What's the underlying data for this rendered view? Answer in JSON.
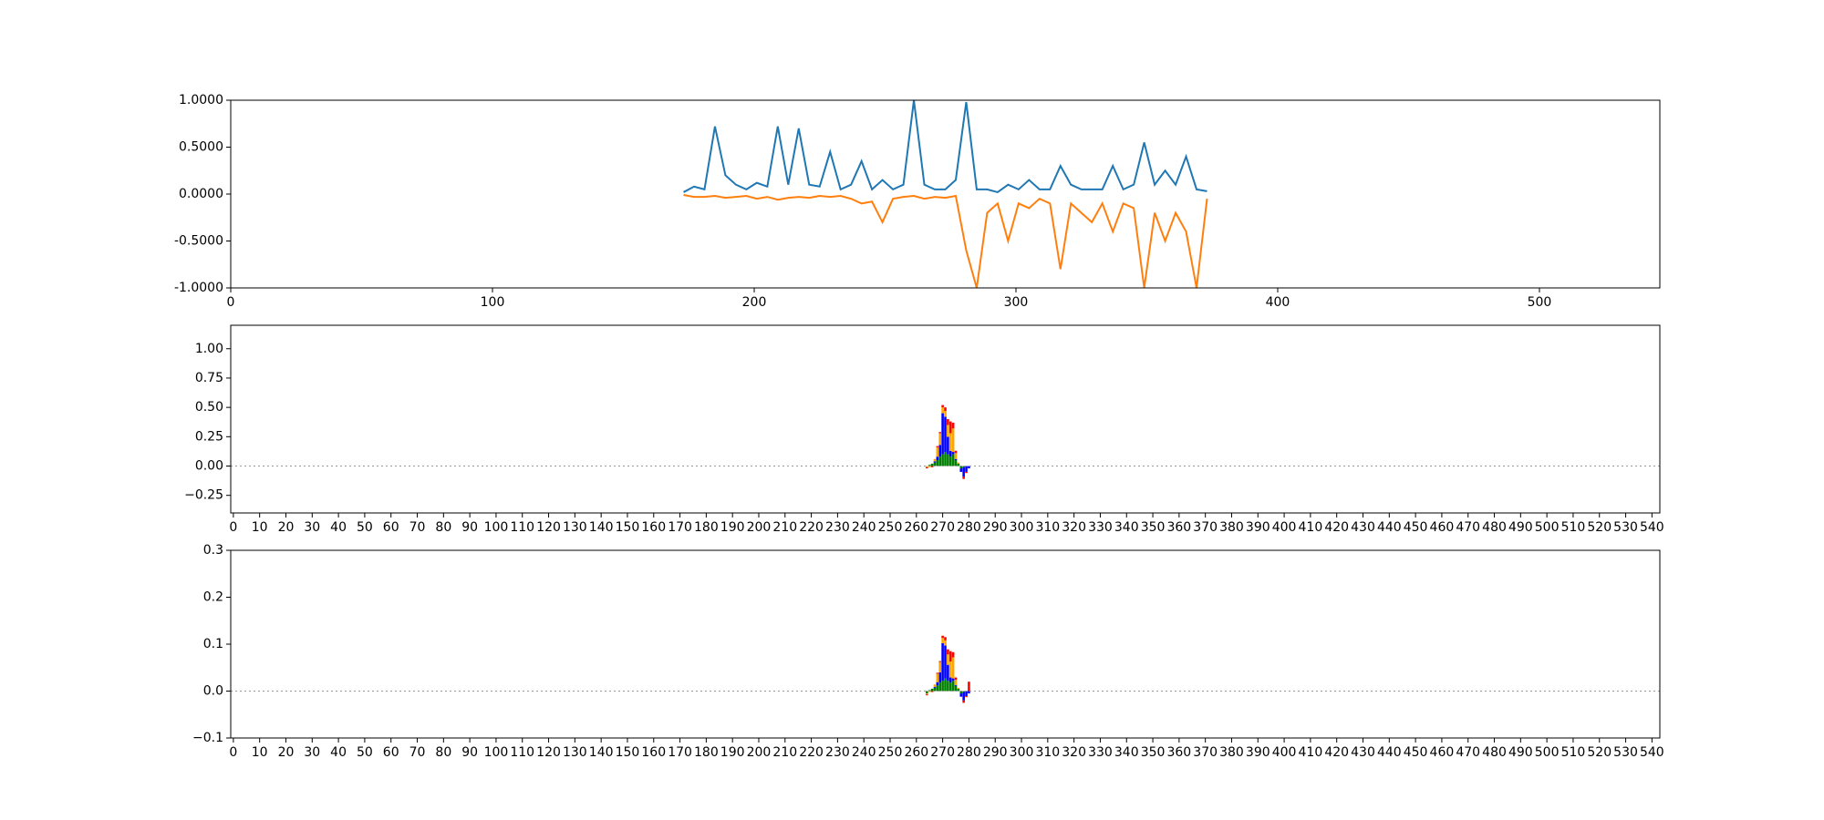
{
  "chart_data": [
    {
      "type": "line",
      "x": [
        173,
        177,
        181,
        185,
        189,
        193,
        197,
        201,
        205,
        209,
        213,
        217,
        221,
        225,
        229,
        233,
        237,
        241,
        245,
        249,
        253,
        257,
        261,
        265,
        269,
        273,
        277,
        281,
        285,
        289,
        293,
        297,
        301,
        305,
        309,
        313,
        317,
        321,
        325,
        329,
        333,
        337,
        341,
        345,
        349,
        353,
        357,
        361,
        365,
        369,
        373
      ],
      "series": [
        {
          "color": "#1f77b4",
          "values": [
            0.02,
            0.08,
            0.05,
            0.72,
            0.2,
            0.1,
            0.05,
            0.12,
            0.08,
            0.72,
            0.1,
            0.7,
            0.1,
            0.08,
            0.45,
            0.05,
            0.1,
            0.35,
            0.05,
            0.15,
            0.05,
            0.1,
            1.0,
            0.1,
            0.05,
            0.05,
            0.15,
            0.98,
            0.05,
            0.05,
            0.02,
            0.1,
            0.05,
            0.15,
            0.05,
            0.05,
            0.3,
            0.1,
            0.05,
            0.05,
            0.05,
            0.3,
            0.05,
            0.1,
            0.55,
            0.1,
            0.25,
            0.1,
            0.4,
            0.05,
            0.03
          ]
        },
        {
          "color": "#ff7f0e",
          "values": [
            -0.01,
            -0.03,
            -0.03,
            -0.02,
            -0.04,
            -0.03,
            -0.02,
            -0.05,
            -0.03,
            -0.06,
            -0.04,
            -0.03,
            -0.04,
            -0.02,
            -0.03,
            -0.02,
            -0.05,
            -0.1,
            -0.08,
            -0.3,
            -0.05,
            -0.03,
            -0.02,
            -0.05,
            -0.03,
            -0.04,
            -0.02,
            -0.6,
            -1.0,
            -0.2,
            -0.1,
            -0.5,
            -0.1,
            -0.15,
            -0.05,
            -0.1,
            -0.8,
            -0.1,
            -0.2,
            -0.3,
            -0.1,
            -0.4,
            -0.1,
            -0.15,
            -1.0,
            -0.2,
            -0.5,
            -0.2,
            -0.4,
            -1.0,
            -0.05
          ]
        }
      ],
      "xlim": [
        0,
        546
      ],
      "ylim": [
        -1,
        1
      ],
      "xticks": [
        0,
        100,
        200,
        300,
        400,
        500
      ],
      "yticks": [
        {
          "value": -1,
          "label": "-1.0000"
        },
        {
          "value": -0.5,
          "label": "-0.5000"
        },
        {
          "value": 0,
          "label": "0.0000"
        },
        {
          "value": 0.5,
          "label": "0.5000"
        },
        {
          "value": 1,
          "label": "1.0000"
        }
      ]
    },
    {
      "type": "logo",
      "positions": [
        264,
        265,
        266,
        267,
        268,
        269,
        270,
        271,
        272,
        273,
        274,
        275,
        276,
        277,
        278,
        279,
        280,
        281,
        282,
        283,
        284
      ],
      "series": [
        {
          "color": "#008000",
          "values": [
            0.0,
            0.01,
            0.02,
            0.03,
            0.05,
            0.08,
            0.1,
            0.12,
            0.1,
            0.08,
            0.1,
            0.05,
            0.02,
            -0.02,
            -0.01,
            0,
            0,
            0,
            0,
            0,
            0
          ]
        },
        {
          "color": "#0000ff",
          "values": [
            0,
            0,
            0,
            0.01,
            0.03,
            0.1,
            0.35,
            0.3,
            0.15,
            0.05,
            0.02,
            0.01,
            0,
            -0.03,
            -0.08,
            -0.05,
            -0.02,
            0,
            0,
            0,
            0
          ]
        },
        {
          "color": "#ffa500",
          "values": [
            -0.01,
            -0.01,
            0,
            0.02,
            0.08,
            0.1,
            0.05,
            0.05,
            0.1,
            0.15,
            0.2,
            0.05,
            0.01,
            0,
            0,
            0,
            0,
            0,
            0,
            0,
            0
          ]
        },
        {
          "color": "#ff0000",
          "values": [
            -0.01,
            0,
            -0.01,
            0,
            0.01,
            0.01,
            0.02,
            0.03,
            0.05,
            0.1,
            0.05,
            0.02,
            0,
            0,
            -0.02,
            -0.01,
            0,
            0,
            0,
            0,
            0
          ]
        }
      ],
      "xlim": [
        -1,
        543
      ],
      "ylim": [
        -0.4,
        1.2
      ],
      "xticks": [
        0,
        10,
        20,
        30,
        40,
        50,
        60,
        70,
        80,
        90,
        100,
        110,
        120,
        130,
        140,
        150,
        160,
        170,
        180,
        190,
        200,
        210,
        220,
        230,
        240,
        250,
        260,
        270,
        280,
        290,
        300,
        310,
        320,
        330,
        340,
        350,
        360,
        370,
        380,
        390,
        400,
        410,
        420,
        430,
        440,
        450,
        460,
        470,
        480,
        490,
        500,
        510,
        520,
        530,
        540
      ],
      "yticks": [
        {
          "value": -0.25,
          "label": "−0.25"
        },
        {
          "value": 0,
          "label": "0.00"
        },
        {
          "value": 0.25,
          "label": "0.25"
        },
        {
          "value": 0.5,
          "label": "0.50"
        },
        {
          "value": 0.75,
          "label": "0.75"
        },
        {
          "value": 1,
          "label": "1.00"
        }
      ]
    },
    {
      "type": "logo",
      "positions": [
        264,
        265,
        266,
        267,
        268,
        269,
        270,
        271,
        272,
        273,
        274,
        275,
        276,
        277,
        278,
        279,
        280,
        281,
        282,
        283,
        284
      ],
      "series": [
        {
          "color": "#008000",
          "values": [
            -0.005,
            0.002,
            0.005,
            0.007,
            0.012,
            0.018,
            0.022,
            0.027,
            0.022,
            0.018,
            0.022,
            0.011,
            0.005,
            -0.005,
            -0.002,
            0,
            0,
            0,
            0,
            0,
            0
          ]
        },
        {
          "color": "#0000ff",
          "values": [
            0,
            0,
            0,
            0.002,
            0.007,
            0.022,
            0.08,
            0.07,
            0.034,
            0.011,
            0.005,
            0.002,
            0,
            -0.007,
            -0.018,
            -0.011,
            -0.005,
            0,
            0,
            0,
            0
          ]
        },
        {
          "color": "#ffa500",
          "values": [
            -0.002,
            -0.002,
            0,
            0.005,
            0.018,
            0.022,
            0.011,
            0.011,
            0.022,
            0.034,
            0.045,
            0.011,
            0.002,
            0,
            0,
            0,
            0,
            0,
            0,
            0,
            0
          ]
        },
        {
          "color": "#ff0000",
          "values": [
            -0.002,
            0,
            -0.002,
            0,
            0.002,
            0.002,
            0.005,
            0.007,
            0.011,
            0.022,
            0.011,
            0.005,
            0,
            0,
            -0.005,
            -0.002,
            0.02,
            0,
            0,
            0,
            0
          ]
        }
      ],
      "xlim": [
        -1,
        543
      ],
      "ylim": [
        -0.1,
        0.3
      ],
      "xticks": [
        0,
        10,
        20,
        30,
        40,
        50,
        60,
        70,
        80,
        90,
        100,
        110,
        120,
        130,
        140,
        150,
        160,
        170,
        180,
        190,
        200,
        210,
        220,
        230,
        240,
        250,
        260,
        270,
        280,
        290,
        300,
        310,
        320,
        330,
        340,
        350,
        360,
        370,
        380,
        390,
        400,
        410,
        420,
        430,
        440,
        450,
        460,
        470,
        480,
        490,
        500,
        510,
        520,
        530,
        540
      ],
      "yticks": [
        {
          "value": -0.1,
          "label": "−0.1"
        },
        {
          "value": 0,
          "label": "0.0"
        },
        {
          "value": 0.1,
          "label": "0.1"
        },
        {
          "value": 0.2,
          "label": "0.2"
        },
        {
          "value": 0.3,
          "label": "0.3"
        }
      ]
    }
  ]
}
